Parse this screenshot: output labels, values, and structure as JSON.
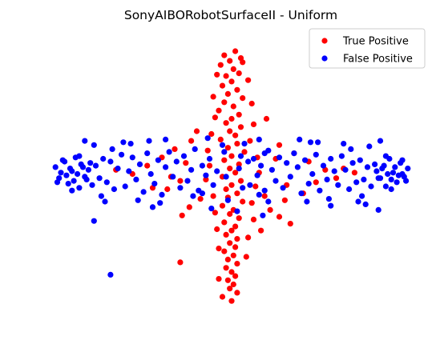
{
  "chart_data": {
    "type": "scatter",
    "title": "SonyAIBORobotSurfaceII - Uniform",
    "xlabel": "",
    "ylabel": "",
    "axes_visible": false,
    "grid": false,
    "legend_position": "top-right",
    "xlim": [
      -10,
      10
    ],
    "ylim": [
      -10,
      10
    ],
    "series": [
      {
        "name": "True Positive",
        "color": "#ff0000",
        "points": [
          [
            -0.4,
            8.6
          ],
          [
            0.2,
            8.9
          ],
          [
            -0.1,
            8.2
          ],
          [
            0.5,
            8.4
          ],
          [
            -0.6,
            7.9
          ],
          [
            0.1,
            7.6
          ],
          [
            -0.3,
            7.1
          ],
          [
            0.4,
            7.3
          ],
          [
            0.0,
            6.7
          ],
          [
            -0.5,
            6.4
          ],
          [
            0.3,
            6.1
          ],
          [
            -0.2,
            5.8
          ],
          [
            0.6,
            5.5
          ],
          [
            -0.4,
            5.2
          ],
          [
            0.1,
            4.9
          ],
          [
            -0.7,
            4.6
          ],
          [
            0.4,
            4.3
          ],
          [
            0.0,
            4.0
          ],
          [
            -0.3,
            3.7
          ],
          [
            0.5,
            3.4
          ],
          [
            -0.1,
            3.1
          ],
          [
            0.2,
            2.8
          ],
          [
            -0.6,
            2.5
          ],
          [
            0.3,
            2.2
          ],
          [
            -0.2,
            1.9
          ],
          [
            0.7,
            1.6
          ],
          [
            0.0,
            1.3
          ],
          [
            -0.4,
            1.0
          ],
          [
            0.4,
            0.7
          ],
          [
            -0.1,
            0.4
          ],
          [
            0.2,
            0.1
          ],
          [
            -0.5,
            -0.2
          ],
          [
            0.5,
            -0.5
          ],
          [
            0.0,
            -0.8
          ],
          [
            -0.3,
            -1.1
          ],
          [
            0.3,
            -1.4
          ],
          [
            -0.2,
            -1.7
          ],
          [
            0.6,
            -2.0
          ],
          [
            -0.5,
            -2.3
          ],
          [
            0.1,
            -2.6
          ],
          [
            -0.1,
            -2.9
          ],
          [
            0.4,
            -3.2
          ],
          [
            -0.4,
            -3.5
          ],
          [
            0.2,
            -3.8
          ],
          [
            0.0,
            -4.1
          ],
          [
            -0.3,
            -4.4
          ],
          [
            0.3,
            -4.7
          ],
          [
            -0.1,
            -5.0
          ],
          [
            0.2,
            -5.3
          ],
          [
            -0.4,
            -5.6
          ],
          [
            0.1,
            -5.9
          ],
          [
            -0.2,
            -6.2
          ],
          [
            0.3,
            -6.5
          ],
          [
            -0.3,
            -6.8
          ],
          [
            0.0,
            -7.1
          ],
          [
            0.2,
            -7.4
          ],
          [
            -0.2,
            -7.7
          ],
          [
            0.1,
            -8.0
          ],
          [
            -0.1,
            -8.3
          ],
          [
            0.3,
            -8.6
          ],
          [
            -0.5,
            -8.9
          ],
          [
            0.0,
            -9.2
          ],
          [
            -0.8,
            7.2
          ],
          [
            0.9,
            6.8
          ],
          [
            -1.0,
            5.6
          ],
          [
            1.1,
            5.1
          ],
          [
            -0.9,
            4.1
          ],
          [
            1.2,
            3.6
          ],
          [
            -1.1,
            2.9
          ],
          [
            1.0,
            2.4
          ],
          [
            -1.3,
            1.7
          ],
          [
            1.4,
            1.2
          ],
          [
            -1.2,
            0.6
          ],
          [
            1.5,
            0.1
          ],
          [
            -1.4,
            -0.4
          ],
          [
            1.3,
            -0.9
          ],
          [
            -1.0,
            -1.6
          ],
          [
            1.1,
            -2.1
          ],
          [
            -0.9,
            -2.8
          ],
          [
            1.2,
            -3.3
          ],
          [
            -0.8,
            -4.0
          ],
          [
            0.9,
            -4.6
          ],
          [
            -0.7,
            -5.4
          ],
          [
            0.8,
            -6.0
          ],
          [
            -2.2,
            2.4
          ],
          [
            2.6,
            2.1
          ],
          [
            -3.1,
            1.8
          ],
          [
            3.4,
            1.5
          ],
          [
            -3.8,
            1.2
          ],
          [
            4.2,
            0.9
          ],
          [
            -4.6,
            0.6
          ],
          [
            5.1,
            0.3
          ],
          [
            -5.4,
            0.0
          ],
          [
            5.7,
            -0.3
          ],
          [
            -2.8,
            -0.5
          ],
          [
            3.0,
            -0.8
          ],
          [
            -3.5,
            -1.1
          ],
          [
            3.9,
            -1.4
          ],
          [
            -4.3,
            -1.0
          ],
          [
            4.6,
            -0.6
          ],
          [
            2.1,
            -2.6
          ],
          [
            2.6,
            -3.1
          ],
          [
            3.2,
            -3.6
          ],
          [
            -2.3,
            -2.4
          ],
          [
            -2.7,
            -3.0
          ],
          [
            6.1,
            0.4
          ],
          [
            6.7,
            0.1
          ],
          [
            -6.3,
            0.3
          ],
          [
            -2.8,
            -6.4
          ],
          [
            1.6,
            -4.1
          ],
          [
            1.9,
            4.0
          ],
          [
            -1.9,
            3.1
          ],
          [
            2.4,
            1.1
          ],
          [
            -2.5,
            0.8
          ],
          [
            1.8,
            -1.6
          ],
          [
            -1.7,
            -1.8
          ],
          [
            0.6,
            8.1
          ],
          [
            -0.7,
            -7.6
          ],
          [
            2.9,
            -1.9
          ],
          [
            -3.3,
            -0.2
          ]
        ]
      },
      {
        "name": "False Positive",
        "color": "#0000ff",
        "points": [
          [
            -9.6,
            0.5
          ],
          [
            -9.4,
            -0.3
          ],
          [
            -9.1,
            0.9
          ],
          [
            -8.9,
            -0.7
          ],
          [
            -8.7,
            0.2
          ],
          [
            -8.5,
            1.2
          ],
          [
            -8.3,
            -1.0
          ],
          [
            -8.1,
            0.5
          ],
          [
            -7.9,
            -0.4
          ],
          [
            -7.7,
            0.8
          ],
          [
            -9.3,
            0.1
          ],
          [
            -9.0,
            -0.1
          ],
          [
            -8.8,
            0.4
          ],
          [
            -8.6,
            -0.5
          ],
          [
            -8.4,
            0.0
          ],
          [
            -8.2,
            0.7
          ],
          [
            -8.0,
            -0.2
          ],
          [
            -7.8,
            0.3
          ],
          [
            -9.5,
            -0.6
          ],
          [
            -9.2,
            1.0
          ],
          [
            -8.7,
            -1.2
          ],
          [
            -8.3,
            1.3
          ],
          [
            -7.6,
            -0.8
          ],
          [
            -7.4,
            0.6
          ],
          [
            -7.2,
            -0.3
          ],
          [
            -7.0,
            1.1
          ],
          [
            -6.8,
            -0.6
          ],
          [
            -6.6,
            0.9
          ],
          [
            -6.4,
            -1.1
          ],
          [
            -6.2,
            0.4
          ],
          [
            -6.0,
            1.4
          ],
          [
            -5.8,
            -0.9
          ],
          [
            -5.6,
            0.2
          ],
          [
            -5.4,
            1.2
          ],
          [
            -5.2,
            -0.4
          ],
          [
            -5.0,
            0.7
          ],
          [
            -4.8,
            -1.3
          ],
          [
            -4.6,
            1.5
          ],
          [
            -4.4,
            0.0
          ],
          [
            -4.2,
            -0.7
          ],
          [
            -4.0,
            1.0
          ],
          [
            -3.8,
            -1.5
          ],
          [
            -3.6,
            0.5
          ],
          [
            -3.4,
            1.6
          ],
          [
            -3.2,
            -0.2
          ],
          [
            -3.0,
            0.9
          ],
          [
            -2.8,
            -1.0
          ],
          [
            -2.6,
            1.3
          ],
          [
            -2.4,
            -0.5
          ],
          [
            -2.2,
            0.3
          ],
          [
            -2.0,
            1.8
          ],
          [
            -1.8,
            -1.2
          ],
          [
            -1.6,
            0.6
          ],
          [
            -1.4,
            -0.1
          ],
          [
            -1.2,
            1.1
          ],
          [
            -1.0,
            -0.8
          ],
          [
            -7.5,
            2.1
          ],
          [
            -6.9,
            -2.0
          ],
          [
            -5.9,
            2.3
          ],
          [
            -5.1,
            -1.9
          ],
          [
            -4.5,
            2.4
          ],
          [
            -3.9,
            -2.1
          ],
          [
            -6.5,
            1.8
          ],
          [
            -7.1,
            -1.6
          ],
          [
            -8.0,
            2.4
          ],
          [
            -7.5,
            -3.4
          ],
          [
            -6.6,
            -7.3
          ],
          [
            -4.3,
            -2.4
          ],
          [
            -3.6,
            2.5
          ],
          [
            -5.5,
            2.2
          ],
          [
            9.6,
            0.4
          ],
          [
            9.4,
            -0.2
          ],
          [
            9.2,
            0.8
          ],
          [
            9.0,
            -0.6
          ],
          [
            8.8,
            0.1
          ],
          [
            8.6,
            1.1
          ],
          [
            8.4,
            -0.9
          ],
          [
            8.2,
            0.4
          ],
          [
            8.0,
            -0.3
          ],
          [
            7.8,
            0.7
          ],
          [
            9.3,
            0.0
          ],
          [
            9.1,
            -0.1
          ],
          [
            8.9,
            0.5
          ],
          [
            8.7,
            -0.4
          ],
          [
            8.5,
            0.0
          ],
          [
            8.3,
            0.6
          ],
          [
            8.1,
            -0.3
          ],
          [
            7.9,
            0.2
          ],
          [
            9.5,
            -0.5
          ],
          [
            9.3,
            1.0
          ],
          [
            8.7,
            -1.1
          ],
          [
            8.4,
            1.3
          ],
          [
            7.6,
            -0.9
          ],
          [
            7.4,
            0.5
          ],
          [
            7.2,
            -0.4
          ],
          [
            7.0,
            1.0
          ],
          [
            6.8,
            -0.6
          ],
          [
            6.6,
            0.8
          ],
          [
            6.4,
            -1.1
          ],
          [
            6.2,
            0.3
          ],
          [
            6.0,
            1.3
          ],
          [
            5.8,
            -0.8
          ],
          [
            5.6,
            0.2
          ],
          [
            5.4,
            1.1
          ],
          [
            5.2,
            -0.4
          ],
          [
            5.0,
            0.6
          ],
          [
            4.8,
            -1.2
          ],
          [
            4.6,
            1.4
          ],
          [
            4.4,
            0.0
          ],
          [
            4.2,
            -0.7
          ],
          [
            4.0,
            1.0
          ],
          [
            3.8,
            -1.4
          ],
          [
            3.6,
            0.5
          ],
          [
            3.4,
            1.5
          ],
          [
            3.2,
            -0.2
          ],
          [
            3.0,
            0.8
          ],
          [
            2.8,
            -1.0
          ],
          [
            2.6,
            1.2
          ],
          [
            2.4,
            -0.5
          ],
          [
            2.2,
            0.3
          ],
          [
            2.0,
            1.7
          ],
          [
            1.8,
            -1.2
          ],
          [
            1.6,
            0.6
          ],
          [
            1.4,
            -0.1
          ],
          [
            1.2,
            1.1
          ],
          [
            1.0,
            -0.8
          ],
          [
            7.5,
            2.0
          ],
          [
            6.9,
            -2.0
          ],
          [
            6.1,
            2.2
          ],
          [
            5.3,
            -1.8
          ],
          [
            4.7,
            2.3
          ],
          [
            4.1,
            -2.0
          ],
          [
            6.5,
            1.8
          ],
          [
            7.1,
            -1.6
          ],
          [
            8.1,
            2.4
          ],
          [
            8.0,
            -2.6
          ],
          [
            7.3,
            -2.2
          ],
          [
            5.4,
            -2.3
          ],
          [
            4.3,
            2.3
          ],
          [
            3.7,
            2.5
          ],
          [
            -0.4,
            1.6
          ],
          [
            0.5,
            1.3
          ],
          [
            -0.3,
            -0.2
          ],
          [
            0.4,
            0.4
          ],
          [
            -0.5,
            2.1
          ],
          [
            0.6,
            -1.0
          ],
          [
            0.9,
            0.9
          ],
          [
            -0.8,
            0.2
          ],
          [
            1.5,
            -1.5
          ],
          [
            -1.6,
            -1.4
          ],
          [
            1.8,
            1.5
          ],
          [
            -0.2,
            -1.9
          ],
          [
            0.3,
            -2.7
          ],
          [
            -1.1,
            -2.5
          ],
          [
            1.7,
            -3.0
          ],
          [
            2.0,
            -2.0
          ],
          [
            -2.1,
            -1.6
          ],
          [
            1.5,
            2.5
          ],
          [
            -1.3,
            2.6
          ],
          [
            0.7,
            2.2
          ]
        ]
      }
    ]
  }
}
